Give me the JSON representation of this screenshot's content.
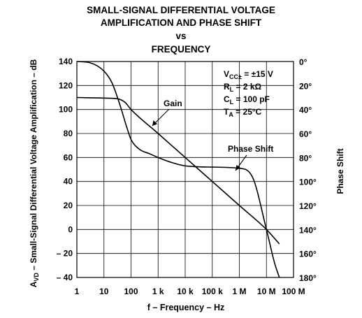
{
  "title_lines": [
    "SMALL-SIGNAL DIFFERENTIAL VOLTAGE",
    "AMPLIFICATION AND PHASE SHIFT",
    "vs",
    "FREQUENCY"
  ],
  "conditions": [
    {
      "main": "V",
      "sub": "CC±",
      "rest": " = ±15 V"
    },
    {
      "main": "R",
      "sub": "L",
      "rest": " = 2 kΩ"
    },
    {
      "main": "C",
      "sub": "L",
      "rest": " = 100 pF"
    },
    {
      "main": "T",
      "sub": "A",
      "rest": " = 25°C"
    }
  ],
  "annotations": {
    "gain": "Gain",
    "phase": "Phase Shift"
  },
  "chart_data": {
    "type": "line",
    "xlabel": "f – Frequency – Hz",
    "ylabel_left": {
      "main": "A",
      "sub": "VD",
      "rest": " – Small-Signal Differential Voltage Amplification – dB"
    },
    "ylabel_right": "Phase Shift",
    "x_scale": "log",
    "xlim": [
      1,
      100000000
    ],
    "ylim": [
      -40,
      140
    ],
    "y2lim": [
      0,
      180
    ],
    "x_ticks": [
      1,
      10,
      100,
      1000,
      10000,
      100000,
      1000000,
      10000000,
      100000000
    ],
    "x_tick_labels": [
      "1",
      "10",
      "100",
      "1 k",
      "10 k",
      "100 k",
      "1 M",
      "10 M",
      "100 M"
    ],
    "y_ticks": [
      140,
      120,
      100,
      80,
      60,
      40,
      20,
      0,
      -20,
      -40
    ],
    "y_tick_labels": [
      "140",
      "120",
      "100",
      "80",
      "60",
      "40",
      "20",
      "0",
      "– 20",
      "– 40"
    ],
    "y2_ticks": [
      0,
      20,
      40,
      60,
      80,
      100,
      120,
      140,
      160,
      180
    ],
    "y2_tick_labels": [
      "0°",
      "20°",
      "40°",
      "60°",
      "80°",
      "100°",
      "120°",
      "140°",
      "160°",
      "180°"
    ],
    "grid": true,
    "series": [
      {
        "name": "Gain",
        "axis": "left",
        "x": [
          1,
          10,
          30,
          60,
          100,
          1000,
          10000,
          100000,
          1000000,
          10000000,
          30000000
        ],
        "y": [
          110,
          109.5,
          109,
          106,
          100,
          80,
          60,
          40,
          20,
          0,
          -12
        ]
      },
      {
        "name": "Phase Shift",
        "axis": "right",
        "x": [
          1,
          3,
          10,
          20,
          40,
          70,
          100,
          200,
          500,
          1000,
          3000,
          10000,
          100000,
          1000000,
          3000000,
          10000000,
          20000000,
          30000000
        ],
        "y": [
          0,
          1,
          8,
          18,
          37,
          55,
          65,
          73,
          77,
          80,
          84,
          87,
          88,
          89,
          96,
          140,
          168,
          180
        ]
      }
    ]
  }
}
